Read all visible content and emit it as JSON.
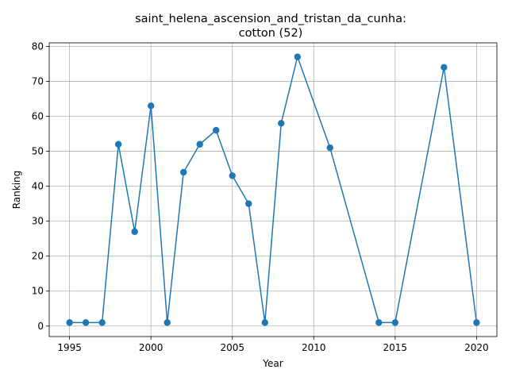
{
  "chart_data": {
    "type": "line",
    "title": "saint_helena_ascension_and_tristan_da_cunha:",
    "subtitle": "cotton (52)",
    "xlabel": "Year",
    "ylabel": "Ranking",
    "xlim": [
      1993.75,
      2021.25
    ],
    "ylim": [
      -3,
      81
    ],
    "xticks": [
      1995,
      2000,
      2005,
      2010,
      2015,
      2020
    ],
    "yticks": [
      0,
      10,
      20,
      30,
      40,
      50,
      60,
      70,
      80
    ],
    "grid": true,
    "series": [
      {
        "color": "#1f77b4",
        "marker": "circle",
        "x": [
          1995,
          1996,
          1997,
          1998,
          1999,
          2000,
          2001,
          2002,
          2003,
          2004,
          2005,
          2006,
          2007,
          2008,
          2009,
          2011,
          2014,
          2015,
          2018,
          2020
        ],
        "y": [
          1,
          1,
          1,
          52,
          27,
          63,
          1,
          44,
          52,
          56,
          43,
          35,
          1,
          58,
          77,
          51,
          1,
          1,
          74,
          1
        ]
      }
    ]
  }
}
